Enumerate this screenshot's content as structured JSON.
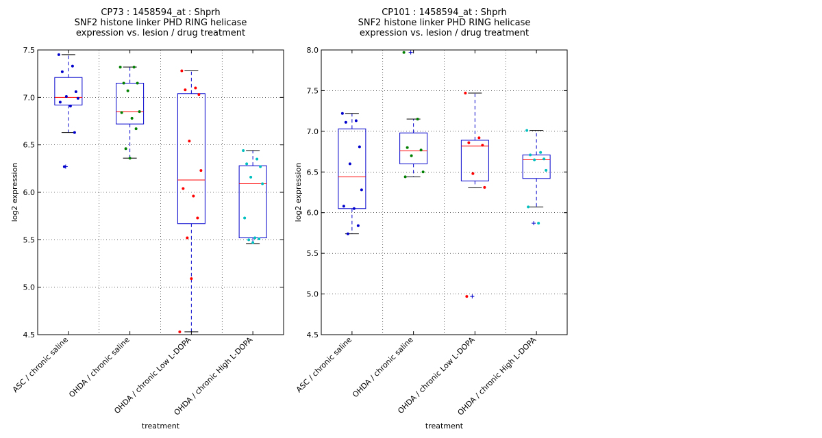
{
  "chart_data": [
    {
      "type": "box",
      "title_lines": [
        "CP73 : 1458594_at : Shprh",
        "SNF2 histone linker PHD RING helicase",
        "expression vs. lesion / drug treatment"
      ],
      "xlabel": "treatment",
      "ylabel": "log2 expression",
      "ylim": [
        4.5,
        7.5
      ],
      "yticks": [
        "4.5",
        "5.0",
        "5.5",
        "6.0",
        "6.5",
        "7.0",
        "7.5"
      ],
      "grid": true,
      "categories": [
        "ASC / chronic saline",
        "OHDA / chronic saline",
        "OHDA / chronic Low L-DOPA",
        "OHDA / chronic High L-DOPA"
      ],
      "colors": [
        "#0000cc",
        "#007f00",
        "#ff0000",
        "#00bfbf"
      ],
      "boxes": [
        {
          "q1": 6.92,
          "median": 7.0,
          "q3": 7.21,
          "whislo": 6.63,
          "whishi": 7.45,
          "fliers": [
            6.27
          ]
        },
        {
          "q1": 6.72,
          "median": 6.85,
          "q3": 7.15,
          "whislo": 6.36,
          "whishi": 7.32,
          "fliers": []
        },
        {
          "q1": 5.67,
          "median": 6.13,
          "q3": 7.04,
          "whislo": 4.53,
          "whishi": 7.28,
          "fliers": []
        },
        {
          "q1": 5.52,
          "median": 6.09,
          "q3": 6.28,
          "whislo": 5.46,
          "whishi": 6.44,
          "fliers": []
        }
      ],
      "points": [
        [
          7.45,
          7.33,
          7.27,
          7.06,
          7.01,
          6.99,
          6.95,
          6.91,
          6.63,
          6.27
        ],
        [
          7.32,
          7.32,
          7.15,
          7.15,
          7.07,
          6.85,
          6.84,
          6.78,
          6.67,
          6.46,
          6.36
        ],
        [
          7.28,
          7.1,
          7.08,
          7.03,
          6.54,
          6.23,
          6.04,
          5.96,
          5.73,
          5.52,
          5.09,
          4.53
        ],
        [
          6.44,
          6.35,
          6.3,
          6.27,
          6.16,
          6.09,
          5.73,
          5.52,
          5.51,
          5.5,
          5.47
        ]
      ]
    },
    {
      "type": "box",
      "title_lines": [
        "CP101 : 1458594_at : Shprh",
        "SNF2 histone linker PHD RING helicase",
        "expression vs. lesion / drug treatment"
      ],
      "xlabel": "treatment",
      "ylabel": "log2 expression",
      "ylim": [
        4.5,
        8.0
      ],
      "yticks": [
        "4.5",
        "5.0",
        "5.5",
        "6.0",
        "6.5",
        "7.0",
        "7.5",
        "8.0"
      ],
      "grid": true,
      "categories": [
        "ASC / chronic saline",
        "OHDA / chronic saline",
        "OHDA / chronic Low L-DOPA",
        "OHDA / chronic High L-DOPA"
      ],
      "colors": [
        "#0000cc",
        "#007f00",
        "#ff0000",
        "#00bfbf"
      ],
      "boxes": [
        {
          "q1": 6.05,
          "median": 6.44,
          "q3": 7.03,
          "whislo": 5.74,
          "whishi": 7.22,
          "fliers": []
        },
        {
          "q1": 6.6,
          "median": 6.76,
          "q3": 6.98,
          "whislo": 6.44,
          "whishi": 7.15,
          "fliers": [
            7.97
          ]
        },
        {
          "q1": 6.39,
          "median": 6.82,
          "q3": 6.89,
          "whislo": 6.31,
          "whishi": 7.47,
          "fliers": [
            4.97
          ]
        },
        {
          "q1": 6.42,
          "median": 6.65,
          "q3": 6.71,
          "whislo": 6.07,
          "whishi": 7.01,
          "fliers": [
            5.87
          ]
        }
      ],
      "points": [
        [
          7.22,
          7.13,
          7.11,
          6.81,
          6.6,
          6.28,
          6.08,
          6.05,
          5.84,
          5.74
        ],
        [
          7.97,
          7.15,
          6.8,
          6.77,
          6.7,
          6.5,
          6.44
        ],
        [
          7.47,
          6.92,
          6.86,
          6.83,
          6.48,
          6.31,
          4.97
        ],
        [
          7.01,
          6.74,
          6.71,
          6.66,
          6.65,
          6.52,
          6.07,
          5.87
        ]
      ]
    }
  ]
}
